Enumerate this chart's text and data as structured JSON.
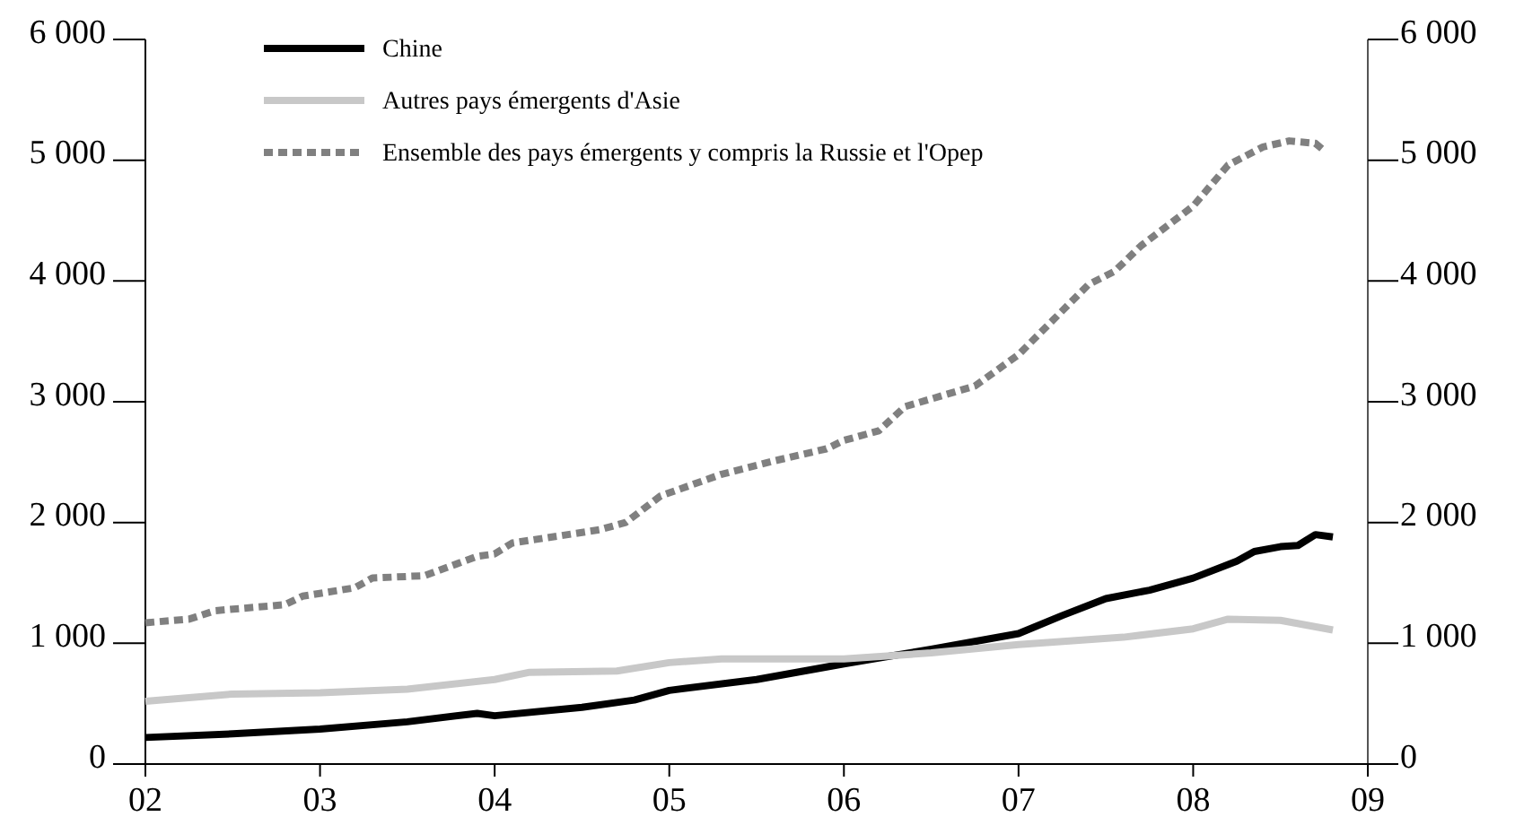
{
  "chart_data": {
    "type": "line",
    "xlim": [
      2002,
      2009
    ],
    "xticks": [
      {
        "value": 2002,
        "label": "02"
      },
      {
        "value": 2003,
        "label": "03"
      },
      {
        "value": 2004,
        "label": "04"
      },
      {
        "value": 2005,
        "label": "05"
      },
      {
        "value": 2006,
        "label": "06"
      },
      {
        "value": 2007,
        "label": "07"
      },
      {
        "value": 2008,
        "label": "08"
      },
      {
        "value": 2009,
        "label": "09"
      }
    ],
    "ylim": [
      0,
      6000
    ],
    "yticks": [
      0,
      {
        "value": 1000,
        "label": "1 000"
      },
      {
        "value": 2000,
        "label": "2 000"
      },
      {
        "value": 3000,
        "label": "3 000"
      },
      {
        "value": 4000,
        "label": "4 000"
      },
      {
        "value": 5000,
        "label": "5 000"
      },
      {
        "value": 6000,
        "label": "6 000"
      }
    ],
    "y2lim": [
      0,
      6000
    ],
    "y2ticks": [
      0,
      {
        "value": 1000,
        "label": "1 000"
      },
      {
        "value": 2000,
        "label": "2 000"
      },
      {
        "value": 3000,
        "label": "3 000"
      },
      {
        "value": 4000,
        "label": "4 000"
      },
      {
        "value": 5000,
        "label": "5 000"
      },
      {
        "value": 6000,
        "label": "6 000"
      }
    ],
    "grid": false,
    "legend": "top left",
    "marker": "none",
    "series": [
      {
        "name": "Chine",
        "color": "#000000",
        "line_style": "solid",
        "x": [
          2002,
          2002.5,
          2003,
          2003.5,
          2003.9,
          2004,
          2004.5,
          2004.8,
          2005,
          2005.5,
          2006,
          2006.5,
          2007,
          2007.25,
          2007.5,
          2007.75,
          2008,
          2008.25,
          2008.35,
          2008.5,
          2008.6,
          2008.7,
          2008.8
        ],
        "values": [
          220,
          250,
          290,
          350,
          420,
          400,
          470,
          530,
          610,
          700,
          830,
          950,
          1080,
          1230,
          1370,
          1440,
          1540,
          1680,
          1760,
          1800,
          1810,
          1900,
          1880
        ]
      },
      {
        "name": "Autres pays émergents d'Asie",
        "color": "#c8c8c8",
        "line_style": "solid",
        "x": [
          2002,
          2002.5,
          2003,
          2003.5,
          2004,
          2004.2,
          2004.7,
          2005,
          2005.3,
          2006,
          2006.5,
          2007,
          2007.6,
          2008,
          2008.2,
          2008.5,
          2008.8
        ],
        "values": [
          520,
          580,
          590,
          620,
          700,
          760,
          770,
          840,
          870,
          870,
          920,
          990,
          1050,
          1120,
          1200,
          1190,
          1110
        ]
      },
      {
        "name": "Ensemble des pays émergents y compris la Russie et l'Opep",
        "color": "#808080",
        "line_style": "dashed",
        "x": [
          2002,
          2002.25,
          2002.4,
          2002.8,
          2002.9,
          2003.2,
          2003.3,
          2003.6,
          2003.9,
          2004,
          2004.1,
          2004.6,
          2004.75,
          2004.95,
          2005.3,
          2005.6,
          2005.9,
          2006,
          2006.2,
          2006.35,
          2006.75,
          2007,
          2007.2,
          2007.4,
          2007.55,
          2007.7,
          2008,
          2008.2,
          2008.4,
          2008.55,
          2008.7,
          2008.75
        ],
        "values": [
          1170,
          1200,
          1270,
          1320,
          1390,
          1460,
          1540,
          1560,
          1720,
          1740,
          1830,
          1940,
          2000,
          2220,
          2400,
          2510,
          2610,
          2680,
          2760,
          2960,
          3130,
          3390,
          3680,
          3970,
          4080,
          4290,
          4620,
          4960,
          5110,
          5160,
          5140,
          5080
        ]
      }
    ]
  }
}
